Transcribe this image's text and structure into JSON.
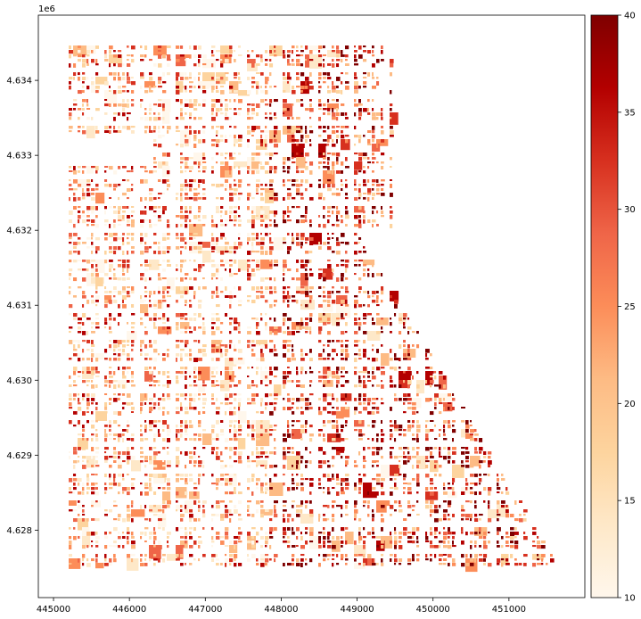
{
  "figure": {
    "y_offset_label": "1e6"
  },
  "map": {
    "x_ticks": [
      {
        "value": 445000,
        "label": "445000"
      },
      {
        "value": 446000,
        "label": "446000"
      },
      {
        "value": 447000,
        "label": "447000"
      },
      {
        "value": 448000,
        "label": "448000"
      },
      {
        "value": 449000,
        "label": "449000"
      },
      {
        "value": 450000,
        "label": "450000"
      },
      {
        "value": 451000,
        "label": "451000"
      }
    ],
    "y_ticks": [
      {
        "value": 4628000,
        "label": "4.628"
      },
      {
        "value": 4629000,
        "label": "4.629"
      },
      {
        "value": 4630000,
        "label": "4.630"
      },
      {
        "value": 4631000,
        "label": "4.631"
      },
      {
        "value": 4632000,
        "label": "4.632"
      },
      {
        "value": 4633000,
        "label": "4.633"
      },
      {
        "value": 4634000,
        "label": "4.634"
      }
    ],
    "xlim": [
      444800,
      452000
    ],
    "ylim": [
      4627100,
      4634870
    ]
  },
  "colorbar": {
    "cmap": "OrRd",
    "range": [
      10,
      40
    ],
    "ticks": [
      {
        "value": 10,
        "label": "10"
      },
      {
        "value": 15,
        "label": "15"
      },
      {
        "value": 20,
        "label": "20"
      },
      {
        "value": 25,
        "label": "25"
      },
      {
        "value": 30,
        "label": "30"
      },
      {
        "value": 35,
        "label": "35"
      },
      {
        "value": 40,
        "label": "40"
      }
    ]
  },
  "colors": {
    "cmap_stops": [
      "#fff7ec",
      "#fee8c8",
      "#fdd49e",
      "#fdbb84",
      "#fc8d59",
      "#ef6548",
      "#d7301f",
      "#b30000",
      "#7f0000"
    ]
  }
}
